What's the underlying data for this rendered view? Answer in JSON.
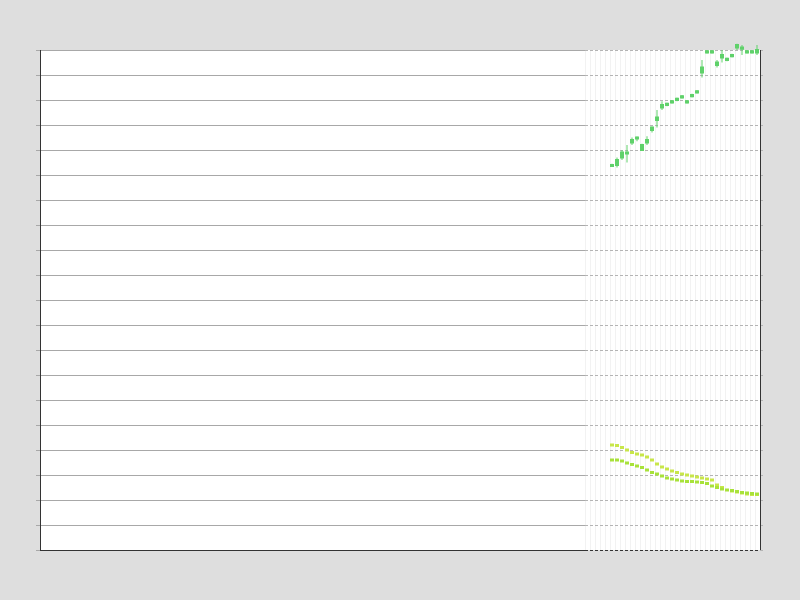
{
  "chart_data": {
    "type": "scatter",
    "title": "",
    "xlabel": "",
    "ylabel": "",
    "grid": true,
    "legend": "none",
    "xlim": [
      0,
      144
    ],
    "ylim": [
      0,
      20
    ],
    "colors": {
      "background": "#dedede",
      "plot_background": "#ffffff",
      "grid_solid": "#a8a8a8",
      "grid_dashed": "#b4b4b4",
      "vertical_band": "#f2f2f2",
      "axis": "#333333",
      "series_top": "#5fd16a",
      "series_upper_band": "#c8e64a",
      "series_lower_band": "#a8e23a"
    },
    "series": [
      {
        "name": "",
        "style": "candle",
        "values": [
          {
            "x": 114.4,
            "open": 15.4,
            "close": 15.4,
            "low": 15.35,
            "high": 15.45
          },
          {
            "x": 115.4,
            "open": 15.4,
            "close": 15.6,
            "low": 15.3,
            "high": 15.7
          },
          {
            "x": 116.4,
            "open": 15.7,
            "close": 15.9,
            "low": 15.6,
            "high": 16.0
          },
          {
            "x": 117.4,
            "open": 15.9,
            "close": 15.9,
            "low": 15.5,
            "high": 16.2
          },
          {
            "x": 118.4,
            "open": 16.3,
            "close": 16.4,
            "low": 16.2,
            "high": 16.5
          },
          {
            "x": 119.4,
            "open": 16.5,
            "close": 16.5,
            "low": 16.35,
            "high": 16.55
          },
          {
            "x": 120.4,
            "open": 16.0,
            "close": 16.2,
            "low": 16.0,
            "high": 16.25
          },
          {
            "x": 121.4,
            "open": 16.3,
            "close": 16.4,
            "low": 16.2,
            "high": 16.55
          },
          {
            "x": 122.4,
            "open": 16.8,
            "close": 16.9,
            "low": 16.7,
            "high": 16.95
          },
          {
            "x": 123.4,
            "open": 17.2,
            "close": 17.3,
            "low": 16.9,
            "high": 17.6
          },
          {
            "x": 124.4,
            "open": 17.7,
            "close": 17.8,
            "low": 17.6,
            "high": 17.95
          },
          {
            "x": 125.4,
            "open": 17.8,
            "close": 17.85,
            "low": 17.75,
            "high": 17.9
          },
          {
            "x": 126.4,
            "open": 17.9,
            "close": 17.95,
            "low": 17.85,
            "high": 18.0
          },
          {
            "x": 127.4,
            "open": 18.0,
            "close": 18.05,
            "low": 17.95,
            "high": 18.1
          },
          {
            "x": 128.4,
            "open": 18.1,
            "close": 18.15,
            "low": 18.05,
            "high": 18.2
          },
          {
            "x": 129.4,
            "open": 17.9,
            "close": 17.95,
            "low": 17.85,
            "high": 18.0
          },
          {
            "x": 130.4,
            "open": 18.15,
            "close": 18.2,
            "low": 18.1,
            "high": 18.25
          },
          {
            "x": 131.4,
            "open": 18.3,
            "close": 18.35,
            "low": 18.25,
            "high": 18.4
          },
          {
            "x": 132.4,
            "open": 19.1,
            "close": 19.3,
            "low": 18.9,
            "high": 19.6
          },
          {
            "x": 133.4,
            "open": 19.9,
            "close": 19.95,
            "low": 19.85,
            "high": 20.0
          },
          {
            "x": 134.4,
            "open": 19.9,
            "close": 19.95,
            "low": 19.85,
            "high": 20.0
          },
          {
            "x": 135.4,
            "open": 19.4,
            "close": 19.5,
            "low": 19.3,
            "high": 19.6
          },
          {
            "x": 136.4,
            "open": 19.7,
            "close": 19.8,
            "low": 19.5,
            "high": 20.0
          },
          {
            "x": 137.4,
            "open": 19.6,
            "close": 19.65,
            "low": 19.55,
            "high": 19.7
          },
          {
            "x": 138.4,
            "open": 19.75,
            "close": 19.8,
            "low": 19.7,
            "high": 19.85
          },
          {
            "x": 139.4,
            "open": 20.1,
            "close": 20.2,
            "low": 20.0,
            "high": 20.25
          },
          {
            "x": 140.4,
            "open": 20.05,
            "close": 20.1,
            "low": 19.8,
            "high": 20.2
          },
          {
            "x": 141.4,
            "open": 19.9,
            "close": 19.95,
            "low": 19.85,
            "high": 20.0
          },
          {
            "x": 142.4,
            "open": 19.9,
            "close": 19.95,
            "low": 19.85,
            "high": 20.0
          },
          {
            "x": 143.4,
            "open": 19.9,
            "close": 20.0,
            "low": 19.8,
            "high": 20.2
          }
        ]
      },
      {
        "name": "",
        "style": "points",
        "x": [
          114.4,
          115.4,
          116.4,
          117.4,
          118.4,
          119.4,
          120.4,
          121.4,
          122.4,
          123.4,
          124.4,
          125.4,
          126.4,
          127.4,
          128.4,
          129.4,
          130.4,
          131.4,
          132.4,
          133.4,
          134.4,
          135.4,
          136.4,
          137.4,
          138.4,
          139.4,
          140.4,
          141.4,
          142.4,
          143.4
        ],
        "values": [
          4.2,
          4.18,
          4.1,
          4.0,
          3.9,
          3.84,
          3.8,
          3.72,
          3.6,
          3.44,
          3.32,
          3.24,
          3.16,
          3.1,
          3.04,
          3.0,
          2.96,
          2.92,
          2.88,
          2.84,
          2.8,
          2.6,
          2.5,
          2.4,
          2.36,
          2.32,
          2.28,
          2.24,
          2.22,
          2.22
        ]
      },
      {
        "name": "",
        "style": "points",
        "x": [
          114.4,
          115.4,
          116.4,
          117.4,
          118.4,
          119.4,
          120.4,
          121.4,
          122.4,
          123.4,
          124.4,
          125.4,
          126.4,
          127.4,
          128.4,
          129.4,
          130.4,
          131.4,
          132.4,
          133.4,
          134.4,
          135.4,
          136.4,
          137.4,
          138.4,
          139.4,
          140.4,
          141.4,
          142.4,
          143.4
        ],
        "values": [
          3.6,
          3.6,
          3.56,
          3.48,
          3.42,
          3.36,
          3.3,
          3.2,
          3.1,
          3.04,
          2.96,
          2.88,
          2.84,
          2.8,
          2.76,
          2.74,
          2.74,
          2.72,
          2.7,
          2.66,
          2.56,
          2.5,
          2.44,
          2.4,
          2.38,
          2.34,
          2.3,
          2.28,
          2.26,
          2.24
        ]
      }
    ],
    "dashed_region_start_x": 109
  }
}
